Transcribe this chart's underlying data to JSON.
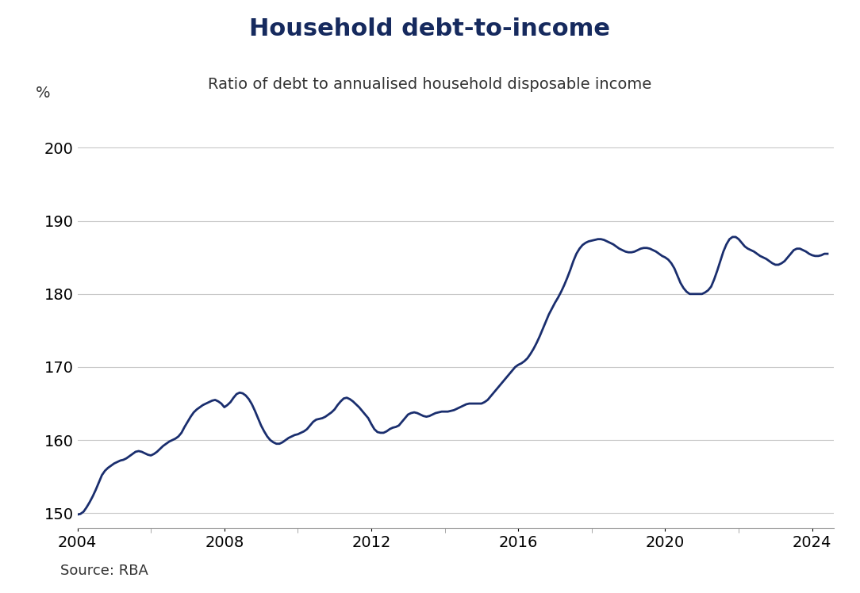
{
  "title": "Household debt-to-income",
  "subtitle": "Ratio of debt to annualised household disposable income",
  "ylabel": "%",
  "source": "Source: RBA",
  "line_color": "#1a2e6e",
  "line_width": 2.0,
  "background_color": "#ffffff",
  "ylim": [
    148,
    204
  ],
  "yticks": [
    150,
    160,
    170,
    180,
    190,
    200
  ],
  "xticks": [
    2004,
    2008,
    2012,
    2016,
    2020,
    2024
  ],
  "title_fontsize": 22,
  "subtitle_fontsize": 14,
  "tick_fontsize": 14,
  "source_fontsize": 13,
  "data": {
    "dates_numeric": [
      2004.0,
      2004.083,
      2004.167,
      2004.25,
      2004.333,
      2004.417,
      2004.5,
      2004.583,
      2004.667,
      2004.75,
      2004.833,
      2004.917,
      2005.0,
      2005.083,
      2005.167,
      2005.25,
      2005.333,
      2005.417,
      2005.5,
      2005.583,
      2005.667,
      2005.75,
      2005.833,
      2005.917,
      2006.0,
      2006.083,
      2006.167,
      2006.25,
      2006.333,
      2006.417,
      2006.5,
      2006.583,
      2006.667,
      2006.75,
      2006.833,
      2006.917,
      2007.0,
      2007.083,
      2007.167,
      2007.25,
      2007.333,
      2007.417,
      2007.5,
      2007.583,
      2007.667,
      2007.75,
      2007.833,
      2007.917,
      2008.0,
      2008.083,
      2008.167,
      2008.25,
      2008.333,
      2008.417,
      2008.5,
      2008.583,
      2008.667,
      2008.75,
      2008.833,
      2008.917,
      2009.0,
      2009.083,
      2009.167,
      2009.25,
      2009.333,
      2009.417,
      2009.5,
      2009.583,
      2009.667,
      2009.75,
      2009.833,
      2009.917,
      2010.0,
      2010.083,
      2010.167,
      2010.25,
      2010.333,
      2010.417,
      2010.5,
      2010.583,
      2010.667,
      2010.75,
      2010.833,
      2010.917,
      2011.0,
      2011.083,
      2011.167,
      2011.25,
      2011.333,
      2011.417,
      2011.5,
      2011.583,
      2011.667,
      2011.75,
      2011.833,
      2011.917,
      2012.0,
      2012.083,
      2012.167,
      2012.25,
      2012.333,
      2012.417,
      2012.5,
      2012.583,
      2012.667,
      2012.75,
      2012.833,
      2012.917,
      2013.0,
      2013.083,
      2013.167,
      2013.25,
      2013.333,
      2013.417,
      2013.5,
      2013.583,
      2013.667,
      2013.75,
      2013.833,
      2013.917,
      2014.0,
      2014.083,
      2014.167,
      2014.25,
      2014.333,
      2014.417,
      2014.5,
      2014.583,
      2014.667,
      2014.75,
      2014.833,
      2014.917,
      2015.0,
      2015.083,
      2015.167,
      2015.25,
      2015.333,
      2015.417,
      2015.5,
      2015.583,
      2015.667,
      2015.75,
      2015.833,
      2015.917,
      2016.0,
      2016.083,
      2016.167,
      2016.25,
      2016.333,
      2016.417,
      2016.5,
      2016.583,
      2016.667,
      2016.75,
      2016.833,
      2016.917,
      2017.0,
      2017.083,
      2017.167,
      2017.25,
      2017.333,
      2017.417,
      2017.5,
      2017.583,
      2017.667,
      2017.75,
      2017.833,
      2017.917,
      2018.0,
      2018.083,
      2018.167,
      2018.25,
      2018.333,
      2018.417,
      2018.5,
      2018.583,
      2018.667,
      2018.75,
      2018.833,
      2018.917,
      2019.0,
      2019.083,
      2019.167,
      2019.25,
      2019.333,
      2019.417,
      2019.5,
      2019.583,
      2019.667,
      2019.75,
      2019.833,
      2019.917,
      2020.0,
      2020.083,
      2020.167,
      2020.25,
      2020.333,
      2020.417,
      2020.5,
      2020.583,
      2020.667,
      2020.75,
      2020.833,
      2020.917,
      2021.0,
      2021.083,
      2021.167,
      2021.25,
      2021.333,
      2021.417,
      2021.5,
      2021.583,
      2021.667,
      2021.75,
      2021.833,
      2021.917,
      2022.0,
      2022.083,
      2022.167,
      2022.25,
      2022.333,
      2022.417,
      2022.5,
      2022.583,
      2022.667,
      2022.75,
      2022.833,
      2022.917,
      2023.0,
      2023.083,
      2023.167,
      2023.25,
      2023.333,
      2023.417,
      2023.5,
      2023.583,
      2023.667,
      2023.75,
      2023.833,
      2023.917,
      2024.0,
      2024.083,
      2024.167,
      2024.25,
      2024.333,
      2024.417
    ],
    "values": [
      149.8,
      149.9,
      150.2,
      150.8,
      151.5,
      152.3,
      153.2,
      154.2,
      155.2,
      155.8,
      156.2,
      156.5,
      156.8,
      157.0,
      157.2,
      157.3,
      157.5,
      157.8,
      158.1,
      158.4,
      158.5,
      158.4,
      158.2,
      158.0,
      157.9,
      158.1,
      158.4,
      158.8,
      159.2,
      159.5,
      159.8,
      160.0,
      160.2,
      160.5,
      161.0,
      161.8,
      162.5,
      163.2,
      163.8,
      164.2,
      164.5,
      164.8,
      165.0,
      165.2,
      165.4,
      165.5,
      165.3,
      165.0,
      164.5,
      164.8,
      165.2,
      165.8,
      166.3,
      166.5,
      166.4,
      166.1,
      165.6,
      164.9,
      164.0,
      163.0,
      162.0,
      161.2,
      160.5,
      160.0,
      159.7,
      159.5,
      159.5,
      159.7,
      160.0,
      160.3,
      160.5,
      160.7,
      160.8,
      161.0,
      161.2,
      161.5,
      162.0,
      162.5,
      162.8,
      162.9,
      163.0,
      163.2,
      163.5,
      163.8,
      164.2,
      164.8,
      165.3,
      165.7,
      165.8,
      165.6,
      165.3,
      164.9,
      164.5,
      164.0,
      163.5,
      163.0,
      162.2,
      161.5,
      161.1,
      161.0,
      161.0,
      161.2,
      161.5,
      161.7,
      161.8,
      162.0,
      162.5,
      163.0,
      163.5,
      163.7,
      163.8,
      163.7,
      163.5,
      163.3,
      163.2,
      163.3,
      163.5,
      163.7,
      163.8,
      163.9,
      163.9,
      163.9,
      164.0,
      164.1,
      164.3,
      164.5,
      164.7,
      164.9,
      165.0,
      165.0,
      165.0,
      165.0,
      165.0,
      165.2,
      165.5,
      166.0,
      166.5,
      167.0,
      167.5,
      168.0,
      168.5,
      169.0,
      169.5,
      170.0,
      170.3,
      170.5,
      170.8,
      171.2,
      171.8,
      172.5,
      173.3,
      174.2,
      175.2,
      176.2,
      177.2,
      178.0,
      178.8,
      179.5,
      180.3,
      181.2,
      182.2,
      183.3,
      184.5,
      185.5,
      186.2,
      186.7,
      187.0,
      187.2,
      187.3,
      187.4,
      187.5,
      187.5,
      187.4,
      187.2,
      187.0,
      186.8,
      186.5,
      186.2,
      186.0,
      185.8,
      185.7,
      185.7,
      185.8,
      186.0,
      186.2,
      186.3,
      186.3,
      186.2,
      186.0,
      185.8,
      185.5,
      185.2,
      185.0,
      184.7,
      184.2,
      183.5,
      182.5,
      181.5,
      180.8,
      180.3,
      180.0,
      180.0,
      180.0,
      180.0,
      180.0,
      180.2,
      180.5,
      181.0,
      182.0,
      183.2,
      184.5,
      185.8,
      186.8,
      187.5,
      187.8,
      187.8,
      187.5,
      187.0,
      186.5,
      186.2,
      186.0,
      185.8,
      185.5,
      185.2,
      185.0,
      184.8,
      184.5,
      184.2,
      184.0,
      184.0,
      184.2,
      184.5,
      185.0,
      185.5,
      186.0,
      186.2,
      186.2,
      186.0,
      185.8,
      185.5,
      185.3,
      185.2,
      185.2,
      185.3,
      185.5,
      185.5
    ]
  }
}
